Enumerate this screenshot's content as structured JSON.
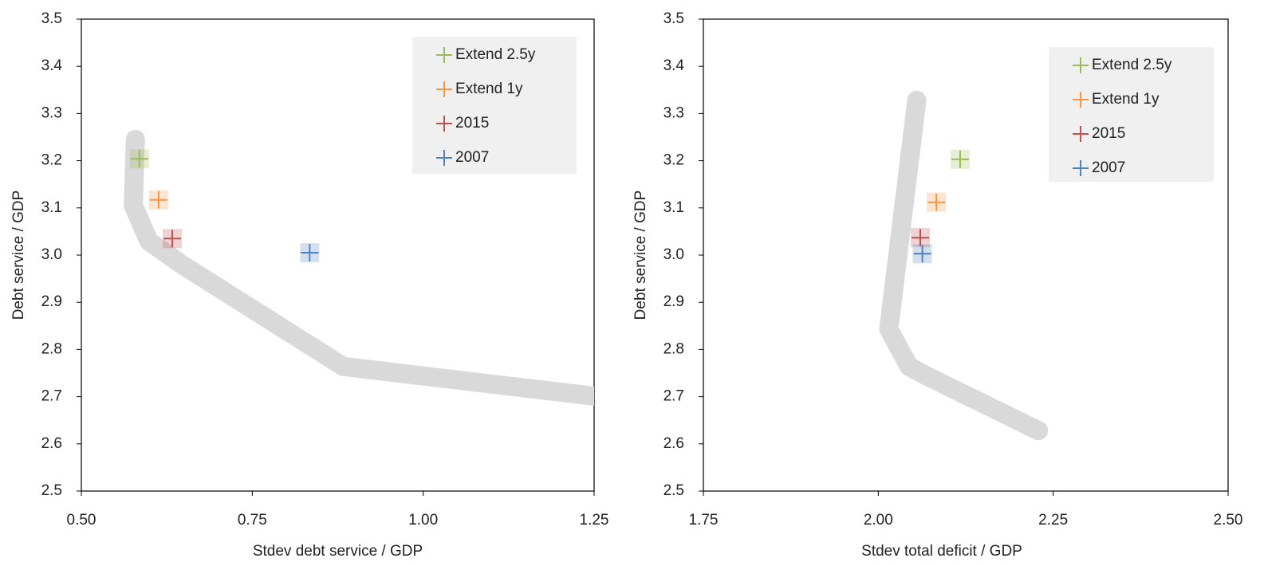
{
  "chart_data": [
    {
      "type": "scatter",
      "xlabel": "Stdev debt service / GDP",
      "ylabel": "Debt service / GDP",
      "xlim": [
        0.5,
        1.25
      ],
      "ylim": [
        2.5,
        3.5
      ],
      "xticks": [
        {
          "value": 0.5,
          "label": "0.50"
        },
        0.75,
        {
          "value": 1,
          "label": "1.00"
        },
        1.25
      ],
      "yticks": [
        2.5,
        2.6,
        2.7,
        2.8,
        2.9,
        {
          "value": 3,
          "label": "3.0"
        },
        3.1,
        3.2,
        3.3,
        3.4,
        3.5
      ],
      "frontier": {
        "color": "#d9d9d9",
        "x": [
          0.579,
          0.576,
          0.599,
          0.649,
          0.883,
          1.25
        ],
        "y": [
          3.245,
          3.105,
          3.029,
          2.978,
          2.764,
          2.701
        ]
      },
      "legend": "upper right",
      "series": [
        {
          "name": "Extend 2.5y",
          "color": "#9bbb59",
          "x": [
            0.585
          ],
          "values": [
            3.204
          ]
        },
        {
          "name": "Extend 1y",
          "color": "#f79646",
          "x": [
            0.613
          ],
          "values": [
            3.117
          ]
        },
        {
          "name": "2015",
          "color": "#c0504d",
          "x": [
            0.633
          ],
          "values": [
            3.035
          ]
        },
        {
          "name": "2007",
          "color": "#4f81bd",
          "x": [
            0.834
          ],
          "values": [
            3.005
          ]
        }
      ]
    },
    {
      "type": "scatter",
      "xlabel": "Stdev total deficit / GDP",
      "ylabel": "Debt service / GDP",
      "xlim": [
        1.75,
        2.5
      ],
      "ylim": [
        2.5,
        3.5
      ],
      "xticks": [
        1.75,
        {
          "value": 2,
          "label": "2.00"
        },
        2.25,
        {
          "value": 2.5,
          "label": "2.50"
        }
      ],
      "yticks": [
        2.5,
        2.6,
        2.7,
        2.8,
        2.9,
        {
          "value": 3,
          "label": "3.0"
        },
        3.1,
        3.2,
        3.3,
        3.4,
        3.5
      ],
      "frontier": {
        "color": "#d9d9d9",
        "x": [
          2.055,
          2.015,
          2.044,
          2.065,
          2.229
        ],
        "y": [
          3.328,
          2.843,
          2.764,
          2.747,
          2.628
        ]
      },
      "legend": "upper right",
      "series": [
        {
          "name": "Extend 2.5y",
          "color": "#9bbb59",
          "x": [
            2.117
          ],
          "values": [
            3.203
          ]
        },
        {
          "name": "Extend 1y",
          "color": "#f79646",
          "x": [
            2.083
          ],
          "values": [
            3.112
          ]
        },
        {
          "name": "2015",
          "color": "#c0504d",
          "x": [
            2.06
          ],
          "values": [
            3.037
          ]
        },
        {
          "name": "2007",
          "color": "#4f81bd",
          "x": [
            2.063
          ],
          "values": [
            3.003
          ]
        }
      ]
    }
  ]
}
